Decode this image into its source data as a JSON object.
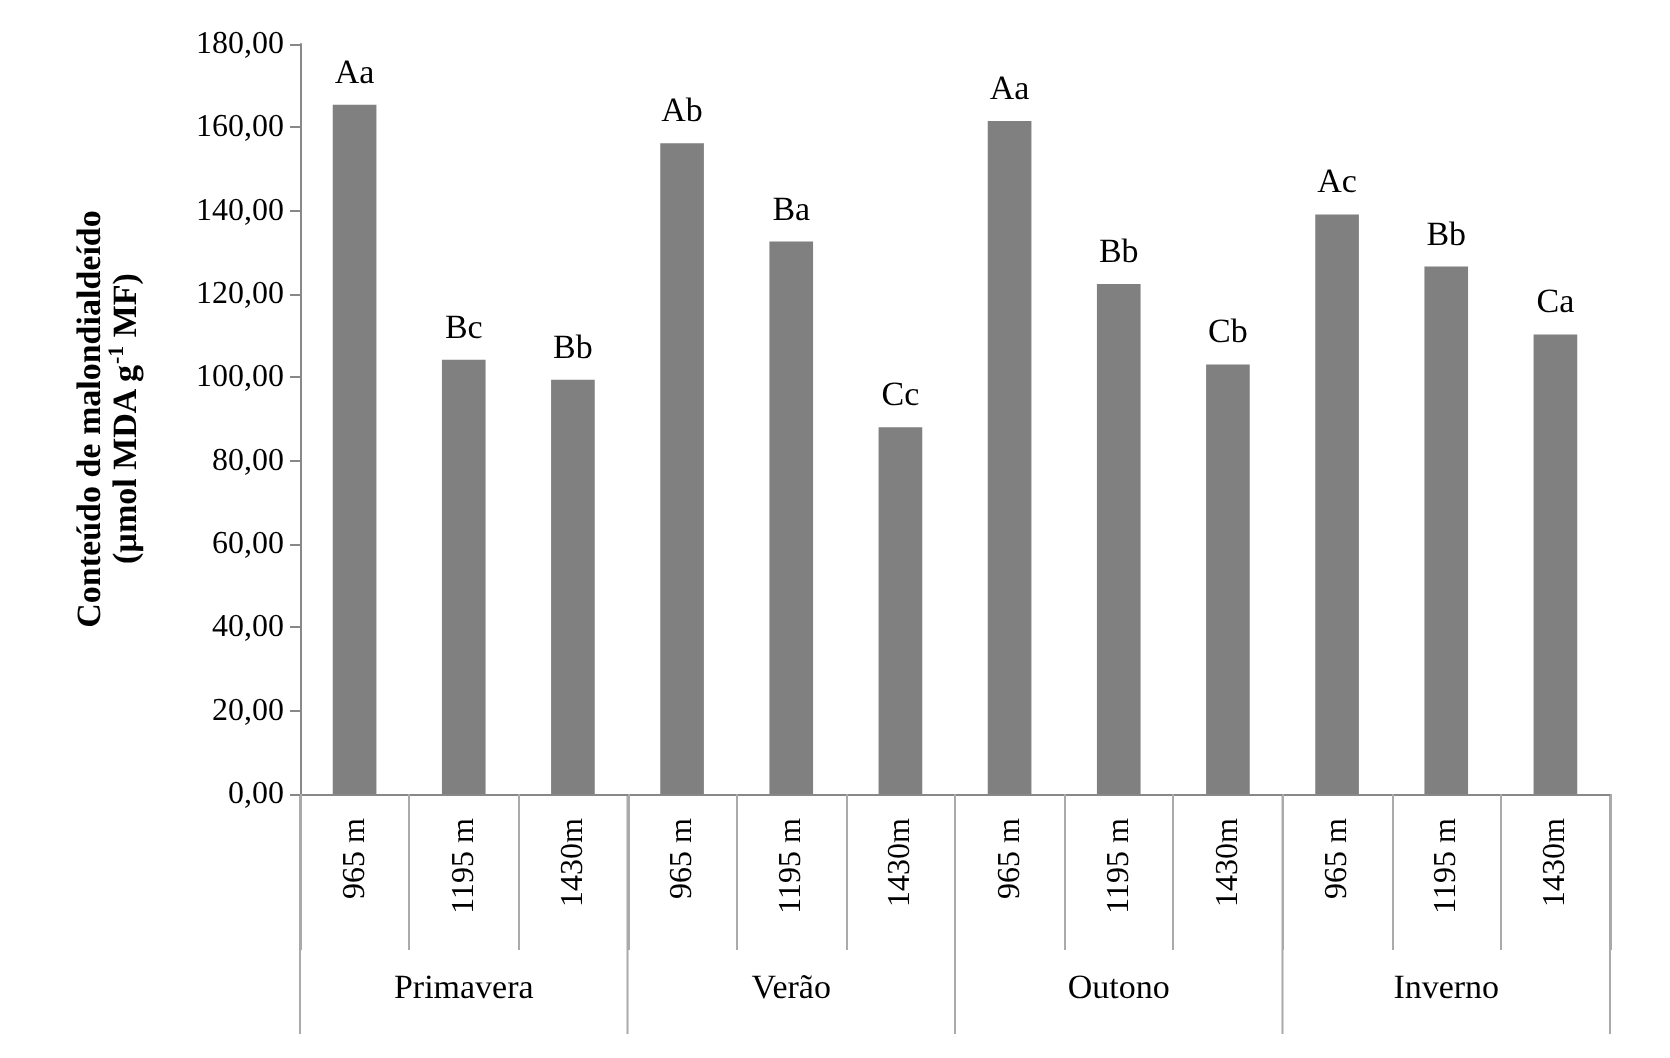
{
  "chart_data": {
    "type": "bar",
    "ylabel": "Conteúdo de malondialdeído\n(µmol MDA g$^{-1}$ MF)",
    "categories": [
      "965 m",
      "1195 m",
      "1430m",
      "965 m",
      "1195 m",
      "1430m",
      "965 m",
      "1195 m",
      "1430m",
      "965 m",
      "1195 m",
      "1430m"
    ],
    "values": [
      165.4,
      104.2,
      99.4,
      156.2,
      132.6,
      88.0,
      161.5,
      122.4,
      103.1,
      139.1,
      126.6,
      110.3
    ],
    "value_labels": [
      "Aa",
      "Bc",
      "Bb",
      "Ab",
      "Ba",
      "Cc",
      "Aa",
      "Bb",
      "Cb",
      "Ac",
      "Bb",
      "Ca"
    ],
    "color": "#808080",
    "ylim": [
      0,
      180
    ],
    "yticks": [
      {
        "value": 0,
        "label": "0,00"
      },
      {
        "value": 20,
        "label": "20,00"
      },
      {
        "value": 40,
        "label": "40,00"
      },
      {
        "value": 60,
        "label": "60,00"
      },
      {
        "value": 80,
        "label": "80,00"
      },
      {
        "value": 100,
        "label": "100,00"
      },
      {
        "value": 120,
        "label": "120,00"
      },
      {
        "value": 140,
        "label": "140,00"
      },
      {
        "value": 160,
        "label": "160,00"
      },
      {
        "value": 180,
        "label": "180,00"
      }
    ],
    "annotations": [
      "Primavera",
      "Verão",
      "Outono",
      "Inverno"
    ]
  }
}
